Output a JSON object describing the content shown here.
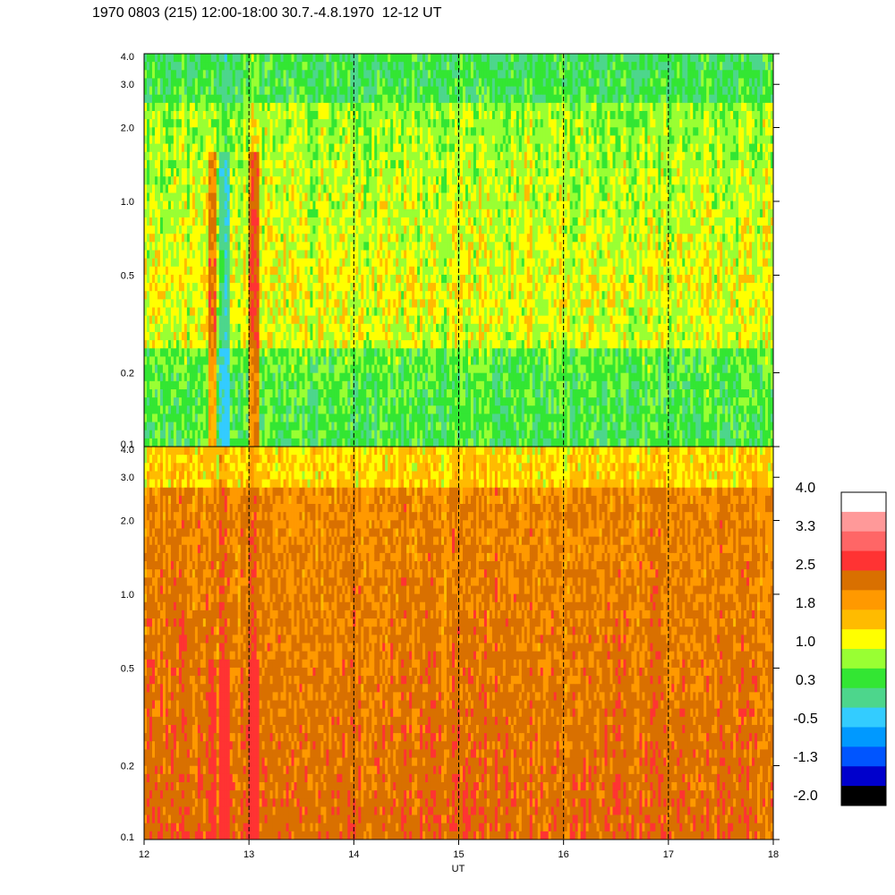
{
  "title": "1970 0803 (215) 12:00-18:00 30.7.-4.8.1970  12-12 UT",
  "chart_data": {
    "type": "heatmap",
    "xlabel": "UT",
    "x_ticks": [
      "12",
      "13",
      "14",
      "15",
      "16",
      "17",
      "18"
    ],
    "x_range": [
      12,
      18
    ],
    "y_scale": "log",
    "y_range": [
      0.1,
      4.0
    ],
    "y_ticks": [
      "4.0",
      "3.0",
      "2.0",
      "1.0",
      "0.5",
      "0.2",
      "0.1"
    ],
    "y_tick_values": [
      4.0,
      3.0,
      2.0,
      1.0,
      0.5,
      0.2,
      0.1
    ],
    "dashed_hour_lines": [
      13,
      14,
      15,
      16,
      17
    ],
    "panels": [
      {
        "name": "upper",
        "dominant_level": 0.7
      },
      {
        "name": "lower",
        "dominant_level": 1.8
      }
    ],
    "colorbar": {
      "labels": [
        "4.0",
        "3.3",
        "2.5",
        "1.8",
        "1.0",
        "0.3",
        "-0.5",
        "-1.3",
        "-2.0"
      ],
      "colors": [
        "#ffffff",
        "#ff9999",
        "#ff6666",
        "#ff3333",
        "#d97000",
        "#ff9900",
        "#ffbb00",
        "#ffff00",
        "#99ff33",
        "#33e633",
        "#4dd68c",
        "#33ccff",
        "#0099ff",
        "#0055ff",
        "#0000cc",
        "#000000"
      ]
    }
  }
}
